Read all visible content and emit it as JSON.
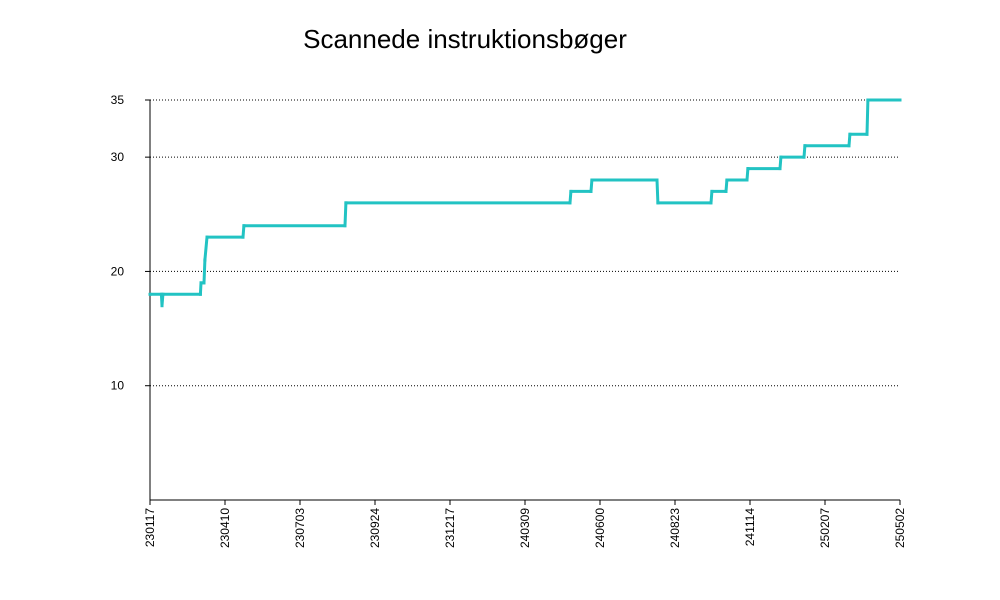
{
  "chart_data": {
    "type": "line",
    "title": "Scannede instruktionsbøger",
    "xlabel": "",
    "ylabel": "",
    "ylim": [
      0,
      35
    ],
    "yticks": [
      10,
      20,
      30,
      35
    ],
    "xticks": [
      "230117",
      "230410",
      "230703",
      "230924",
      "231217",
      "240309",
      "240600",
      "240823",
      "241114",
      "250207",
      "250502"
    ],
    "grid": true,
    "color": "#22c3c3",
    "series": [
      {
        "x": [
          0,
          3.8,
          4.0,
          4.3,
          16.8,
          17.0,
          18.0,
          18.3,
          19.0,
          31.0,
          31.3,
          65.0,
          65.3,
          140.0,
          140.3,
          147.0,
          147.3,
          169.0,
          169.3,
          187.0,
          187.3,
          192.0,
          192.3,
          199.0,
          199.3,
          210.0,
          210.3,
          218.0,
          218.3,
          233.0,
          233.3,
          239.0,
          239.3,
          250.0
        ],
        "y": [
          18,
          18,
          17,
          18,
          18,
          19,
          19,
          21,
          23,
          23,
          24,
          24,
          26,
          26,
          27,
          27,
          28,
          28,
          26,
          26,
          27,
          27,
          28,
          28,
          29,
          29,
          30,
          30,
          31,
          31,
          32,
          32,
          35,
          35
        ]
      }
    ]
  }
}
